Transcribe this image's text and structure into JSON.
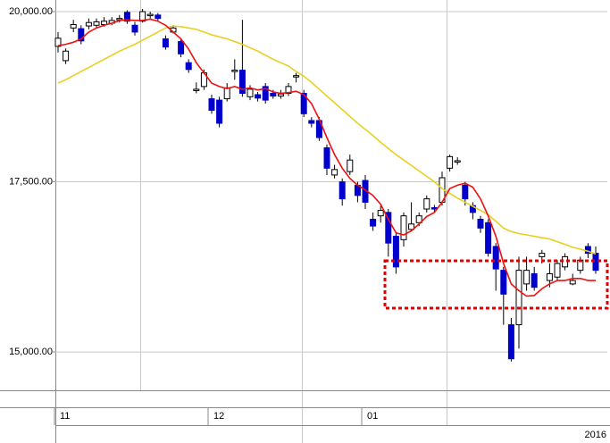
{
  "chart_data": {
    "type": "candlestick",
    "ylim": [
      14437,
      20171
    ],
    "yticks": [
      {
        "value": 20000,
        "label": "20,000.00"
      },
      {
        "value": 17500,
        "label": "17,500.00"
      },
      {
        "value": 15000,
        "label": "15,000.00"
      }
    ],
    "grid": true,
    "categories": [
      "11",
      null,
      null,
      null,
      null,
      null,
      null,
      null,
      null,
      null,
      null,
      null,
      null,
      null,
      null,
      null,
      null,
      null,
      null,
      null,
      "12",
      null,
      null,
      null,
      null,
      null,
      null,
      null,
      null,
      null,
      null,
      null,
      null,
      null,
      null,
      null,
      null,
      null,
      null,
      null,
      "01",
      null,
      null,
      null,
      null,
      null,
      null,
      null,
      null,
      null,
      null,
      null,
      null,
      null,
      null,
      null,
      null,
      null,
      null,
      null,
      null,
      null,
      null,
      null,
      null,
      null,
      null,
      null,
      null,
      null,
      null
    ],
    "year_label": "2016",
    "up_color": "#ffffff",
    "down_color": "#0000cc",
    "open": [
      19490,
      19280,
      19760,
      19750,
      19790,
      19800,
      19810,
      19830,
      19880,
      19990,
      19800,
      19860,
      19940,
      19950,
      19600,
      19700,
      19560,
      19250,
      18840,
      18900,
      18720,
      18700,
      18720,
      19120,
      19140,
      18750,
      18780,
      18900,
      18800,
      18760,
      18800,
      19040,
      18800,
      18400,
      18400,
      18000,
      17600,
      17500,
      17650,
      17450,
      17520,
      16950,
      17000,
      17050,
      16700,
      16650,
      16800,
      16900,
      17100,
      17120,
      17200,
      17700,
      17790,
      17450,
      17150,
      16950,
      16900,
      16550,
      16200,
      15400,
      15400,
      16000,
      16150,
      16400,
      16050,
      16100,
      16250,
      16000,
      16200,
      16550,
      16450
    ],
    "high": [
      19700,
      19460,
      19880,
      19800,
      19900,
      19900,
      19920,
      19920,
      19950,
      20020,
      19850,
      20040,
      20000,
      19980,
      19650,
      19800,
      19600,
      19300,
      18960,
      19150,
      18780,
      18750,
      18950,
      19300,
      19880,
      18920,
      18820,
      18950,
      18850,
      18850,
      18950,
      19100,
      18850,
      18450,
      18450,
      18050,
      17750,
      17550,
      17900,
      17500,
      17600,
      17050,
      17150,
      17100,
      16750,
      17050,
      17200,
      17050,
      17300,
      17160,
      17650,
      17900,
      17860,
      17500,
      17200,
      17000,
      16950,
      16600,
      16250,
      15500,
      16400,
      16400,
      16250,
      16500,
      16300,
      16350,
      16450,
      16150,
      16400,
      16600,
      16550
    ],
    "low": [
      19400,
      19230,
      19700,
      19520,
      19740,
      19760,
      19780,
      19800,
      19840,
      19820,
      19650,
      19840,
      19900,
      19860,
      19440,
      19680,
      19330,
      19100,
      18800,
      18850,
      18500,
      18300,
      18680,
      19000,
      18750,
      18700,
      18680,
      18650,
      18720,
      18720,
      18760,
      18960,
      18450,
      18300,
      18100,
      17600,
      17550,
      17150,
      17600,
      17200,
      17100,
      16780,
      16900,
      16400,
      16150,
      16550,
      16780,
      16850,
      17050,
      17060,
      17150,
      17650,
      17750,
      17150,
      16950,
      16750,
      16400,
      15900,
      15400,
      14860,
      15050,
      15900,
      15900,
      16300,
      15950,
      16050,
      16200,
      15980,
      16150,
      16380,
      16150
    ],
    "close": [
      19610,
      19420,
      19810,
      19570,
      19840,
      19850,
      19860,
      19870,
      19900,
      19860,
      19700,
      20000,
      19960,
      19900,
      19480,
      19760,
      19380,
      19150,
      18860,
      19100,
      18550,
      18360,
      18880,
      19140,
      18800,
      18860,
      18730,
      18700,
      18760,
      18790,
      18900,
      19060,
      18500,
      18360,
      18150,
      17700,
      17680,
      17250,
      17820,
      17300,
      17200,
      16850,
      17080,
      16600,
      16250,
      17000,
      16880,
      17000,
      17250,
      17100,
      17560,
      17870,
      17810,
      17250,
      17050,
      16820,
      16450,
      16220,
      15850,
      14900,
      16200,
      16200,
      15950,
      16450,
      16150,
      16300,
      16400,
      16050,
      16350,
      16450,
      16200
    ],
    "lines": [
      {
        "color": "#e8d020",
        "values": [
          18950,
          19000,
          19060,
          19120,
          19180,
          19240,
          19300,
          19360,
          19420,
          19470,
          19520,
          19580,
          19640,
          19700,
          19760,
          19790,
          19780,
          19760,
          19740,
          19700,
          19660,
          19630,
          19600,
          19560,
          19520,
          19470,
          19420,
          19360,
          19300,
          19250,
          19200,
          19120,
          19050,
          18960,
          18860,
          18760,
          18660,
          18560,
          18460,
          18360,
          18270,
          18180,
          18080,
          17990,
          17900,
          17820,
          17740,
          17660,
          17580,
          17500,
          17400,
          17330,
          17260,
          17200,
          17140,
          17080,
          17020,
          16920,
          16820,
          16770,
          16740,
          16720,
          16700,
          16680,
          16660,
          16620,
          16580,
          16540,
          16510,
          16480,
          16440
        ]
      },
      {
        "color": "#ee1111",
        "values": [
          19500,
          19520,
          19550,
          19600,
          19700,
          19760,
          19800,
          19830,
          19870,
          19880,
          19870,
          19870,
          19890,
          19860,
          19800,
          19700,
          19600,
          19450,
          19250,
          19100,
          18950,
          18900,
          18870,
          18900,
          18860,
          18880,
          18850,
          18870,
          18820,
          18800,
          18810,
          18830,
          18780,
          18650,
          18420,
          18150,
          17900,
          17700,
          17550,
          17450,
          17380,
          17300,
          17170,
          16950,
          16750,
          16720,
          16780,
          16880,
          16990,
          17050,
          17200,
          17400,
          17450,
          17480,
          17420,
          17250,
          17000,
          16700,
          16300,
          16000,
          15900,
          15820,
          15830,
          15930,
          16000,
          16050,
          16050,
          16080,
          16080,
          16050,
          16050
        ]
      }
    ]
  }
}
